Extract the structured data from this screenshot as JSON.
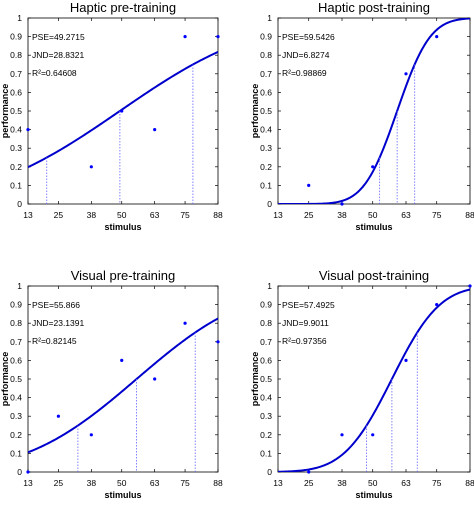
{
  "chart_data": [
    {
      "type": "scatter",
      "title": "Haptic pre-training",
      "xlabel": "stimulus",
      "ylabel": "performance",
      "xlim": [
        13,
        88
      ],
      "ylim": [
        0,
        1
      ],
      "xticks": [
        13,
        25,
        38,
        50,
        63,
        75,
        88
      ],
      "yticks": [
        0,
        0.1,
        0.2,
        0.3,
        0.4,
        0.5,
        0.6,
        0.7,
        0.8,
        0.9,
        1
      ],
      "points": {
        "x": [
          13,
          38,
          50,
          63,
          75,
          88
        ],
        "y": [
          0.4,
          0.2,
          0.5,
          0.4,
          0.9,
          0.9
        ]
      },
      "fit": {
        "pse": 49.2715,
        "jnd": 28.8321,
        "r2": 0.64608
      },
      "annotations": [
        "PSE=49.2715",
        "JND=28.8321",
        "R²=0.64608"
      ],
      "dashed_at": [
        20.4,
        49.2715,
        78.1
      ]
    },
    {
      "type": "scatter",
      "title": "Haptic post-training",
      "xlabel": "stimulus",
      "ylabel": "performance",
      "xlim": [
        13,
        88
      ],
      "ylim": [
        0,
        1
      ],
      "xticks": [
        13,
        25,
        38,
        50,
        63,
        75,
        88
      ],
      "yticks": [
        0,
        0.1,
        0.2,
        0.3,
        0.4,
        0.5,
        0.6,
        0.7,
        0.8,
        0.9,
        1
      ],
      "points": {
        "x": [
          25,
          38,
          50,
          63,
          75
        ],
        "y": [
          0.1,
          0.0,
          0.2,
          0.7,
          0.9
        ]
      },
      "fit": {
        "pse": 59.5426,
        "jnd": 6.8274,
        "r2": 0.98869
      },
      "annotations": [
        "PSE=59.5426",
        "JND=6.8274",
        "R²=0.98869"
      ],
      "dashed_at": [
        52.7,
        59.5426,
        66.4
      ]
    },
    {
      "type": "scatter",
      "title": "Visual pre-training",
      "xlabel": "stimulus",
      "ylabel": "performance",
      "xlim": [
        13,
        88
      ],
      "ylim": [
        0,
        1
      ],
      "xticks": [
        13,
        25,
        38,
        50,
        63,
        75,
        88
      ],
      "yticks": [
        0,
        0.1,
        0.2,
        0.3,
        0.4,
        0.5,
        0.6,
        0.7,
        0.8,
        0.9,
        1
      ],
      "points": {
        "x": [
          13,
          25,
          38,
          50,
          63,
          75,
          88
        ],
        "y": [
          0.0,
          0.3,
          0.2,
          0.6,
          0.5,
          0.8,
          0.7
        ]
      },
      "fit": {
        "pse": 55.866,
        "jnd": 23.1391,
        "r2": 0.82145
      },
      "annotations": [
        "PSE=55.866",
        "JND=23.1391",
        "R²=0.82145"
      ],
      "dashed_at": [
        32.7,
        55.866,
        79.0
      ]
    },
    {
      "type": "scatter",
      "title": "Visual post-training",
      "xlabel": "stimulus",
      "ylabel": "performance",
      "xlim": [
        13,
        88
      ],
      "ylim": [
        0,
        1
      ],
      "xticks": [
        13,
        25,
        38,
        50,
        63,
        75,
        88
      ],
      "yticks": [
        0,
        0.1,
        0.2,
        0.3,
        0.4,
        0.5,
        0.6,
        0.7,
        0.8,
        0.9,
        1
      ],
      "points": {
        "x": [
          25,
          38,
          50,
          63,
          75,
          88
        ],
        "y": [
          0.0,
          0.2,
          0.2,
          0.6,
          0.9,
          1.0
        ]
      },
      "fit": {
        "pse": 57.4925,
        "jnd": 9.9011,
        "r2": 0.97356
      },
      "annotations": [
        "PSE=57.4925",
        "JND=9.9011",
        "R²=0.97356"
      ],
      "dashed_at": [
        47.6,
        57.4925,
        67.4
      ]
    }
  ],
  "colors": {
    "curve": "#0000cc",
    "points": "#0000ff",
    "dashed": "#6666ff",
    "axis": "#000000"
  }
}
